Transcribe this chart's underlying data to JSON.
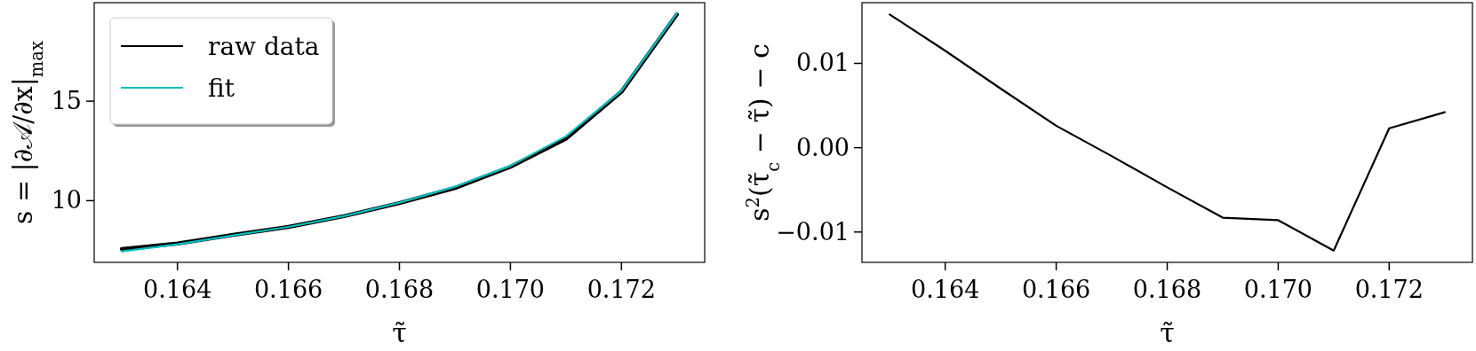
{
  "chart_data": [
    {
      "type": "line",
      "xlabel": "τ̃",
      "ylabel": "s = |∂𝒜/∂x|$_{max}$",
      "x": [
        0.163,
        0.164,
        0.165,
        0.166,
        0.167,
        0.168,
        0.169,
        0.17,
        0.171,
        0.172,
        0.173
      ],
      "xlim": [
        0.1625,
        0.1735
      ],
      "ylim": [
        6.9,
        19.95
      ],
      "xticks": [
        0.164,
        0.166,
        0.168,
        {
          "value": 0.17,
          "label": "0.170"
        },
        0.172
      ],
      "yticks": [
        10,
        15
      ],
      "legend": "top left",
      "series": [
        {
          "name": "raw data",
          "color": "#000000",
          "values": [
            7.57,
            7.85,
            8.28,
            8.68,
            9.22,
            9.88,
            10.64,
            11.7,
            13.11,
            15.47,
            19.36
          ]
        },
        {
          "name": "fit",
          "color": "#00bfbf",
          "values": [
            7.45,
            7.81,
            8.25,
            8.68,
            9.22,
            9.9,
            10.7,
            11.75,
            13.23,
            15.52,
            19.41
          ]
        }
      ]
    },
    {
      "type": "line",
      "xlabel": "τ̃",
      "ylabel": "s$^{2}$(τ̃$_{c}$ − τ̃) − c",
      "x": [
        0.163,
        0.164,
        0.165,
        0.166,
        0.167,
        0.168,
        0.169,
        0.17,
        0.171,
        0.172,
        0.173
      ],
      "xlim": [
        0.1625,
        0.1735
      ],
      "ylim": [
        -0.0136,
        0.0172
      ],
      "xticks": [
        0.164,
        0.166,
        0.168,
        {
          "value": 0.17,
          "label": "0.170"
        },
        0.172
      ],
      "yticks": [
        {
          "value": -0.01,
          "label": "−0.01"
        },
        {
          "value": 0,
          "label": "0.00"
        },
        {
          "value": 0.01,
          "label": "0.01"
        }
      ],
      "series": [
        {
          "color": "#000000",
          "values": [
            0.0158,
            0.0115,
            0.007,
            0.0026,
            -0.001,
            -0.0047,
            -0.0083,
            -0.0086,
            -0.0122,
            0.0023,
            0.0042
          ]
        }
      ]
    }
  ]
}
